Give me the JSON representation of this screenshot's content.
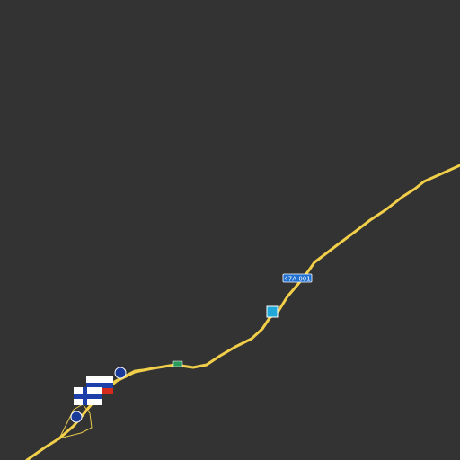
{
  "map": {
    "road_labels": [
      "47A-001"
    ]
  }
}
